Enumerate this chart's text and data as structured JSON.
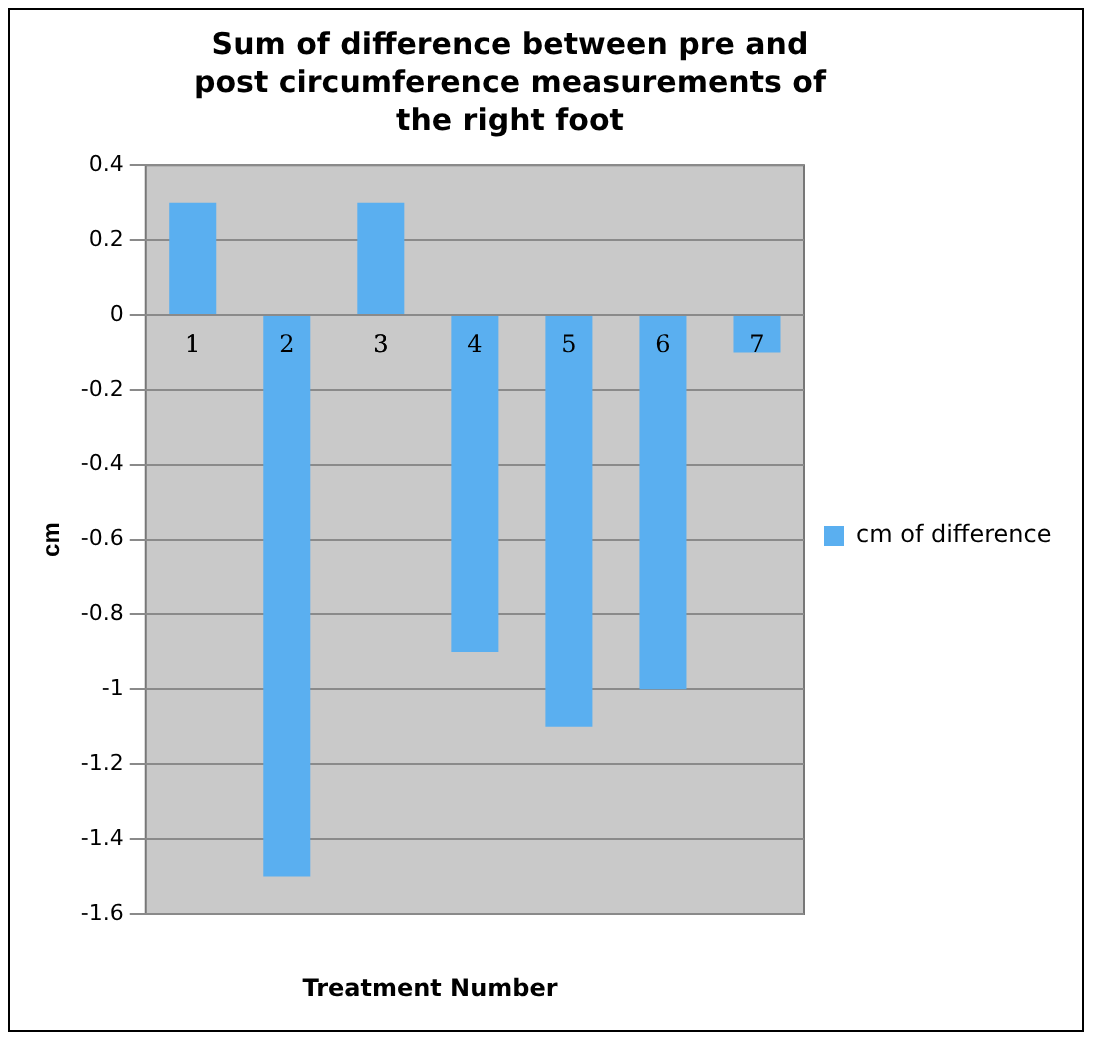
{
  "chart_data": {
    "type": "bar",
    "title": "Sum of difference between pre and post circumference measurements of the right foot",
    "xlabel": "Treatment Number",
    "ylabel": "cm",
    "categories": [
      "1",
      "2",
      "3",
      "4",
      "5",
      "6",
      "7"
    ],
    "series": [
      {
        "name": "cm of difference",
        "color": "#5aaff0",
        "values": [
          0.3,
          -1.5,
          0.3,
          -0.9,
          -1.1,
          -1.0,
          -0.1
        ]
      }
    ],
    "ylim": [
      -1.6,
      0.4
    ],
    "yticks": [
      0.4,
      0.2,
      0,
      -0.2,
      -0.4,
      -0.6,
      -0.8,
      -1,
      -1.2,
      -1.4,
      -1.6
    ],
    "grid": "y",
    "legend": "right"
  }
}
